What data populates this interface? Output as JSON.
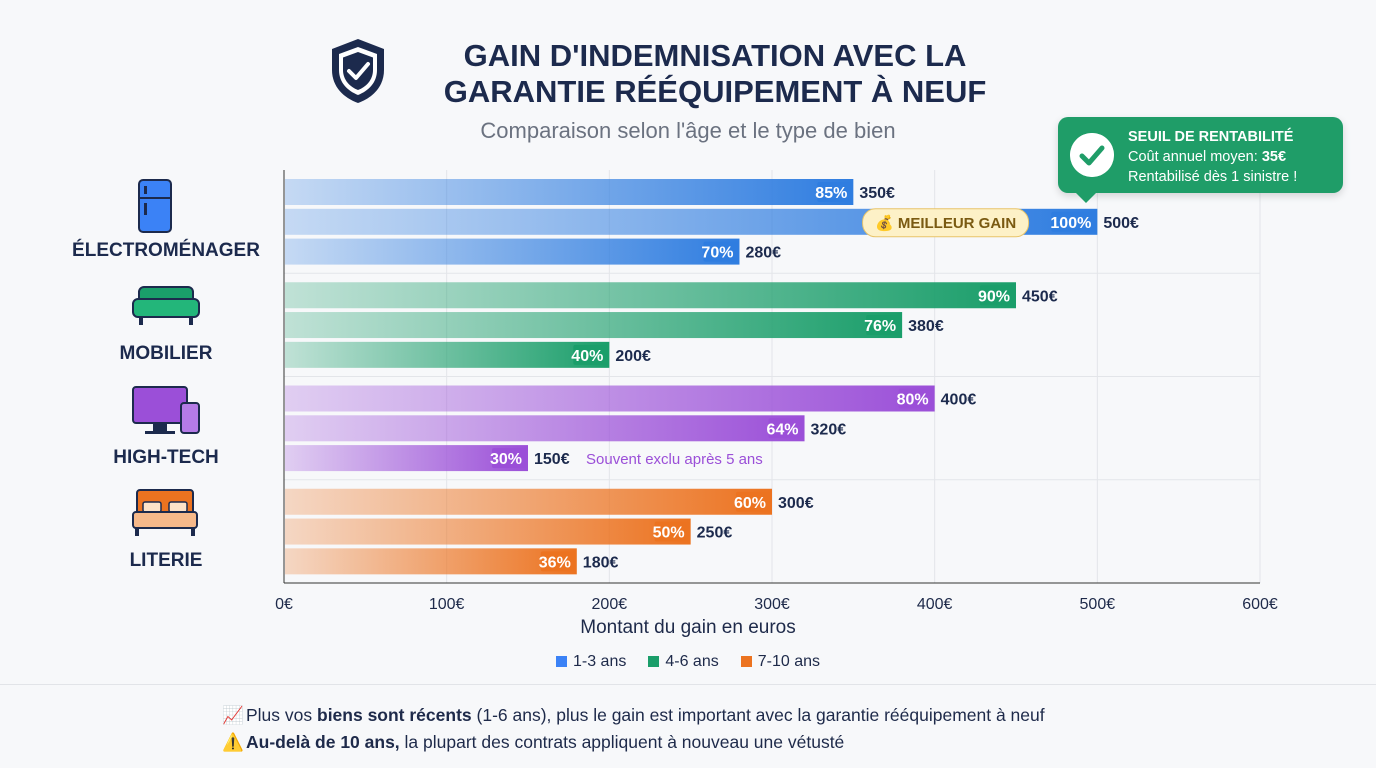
{
  "header": {
    "title_line1": "GAIN D'INDEMNISATION AVEC LA",
    "title_line2": "GARANTIE RÉÉQUIPEMENT À NEUF",
    "subtitle": "Comparaison selon l'âge et le type de bien",
    "icon": "shield-check-icon"
  },
  "callout": {
    "icon": "check-circle-icon",
    "title": "SEUIL DE RENTABILITÉ",
    "line2_prefix": "Coût annuel moyen: ",
    "line2_value": "35€",
    "line3": "Rentabilisé dès 1 sinistre !"
  },
  "chart_data": {
    "type": "bar",
    "orientation": "horizontal",
    "categories": [
      "ÉLECTROMÉNAGER",
      "MOBILIER",
      "HIGH-TECH",
      "LITERIE"
    ],
    "category_icons": [
      "fridge-icon",
      "sofa-icon",
      "computer-tablet-icon",
      "bed-icon"
    ],
    "series": [
      {
        "name": "1-3 ans",
        "values": [
          350,
          450,
          400,
          300
        ],
        "percent_labels": [
          "85%",
          "90%",
          "80%",
          "60%"
        ]
      },
      {
        "name": "4-6 ans",
        "values": [
          500,
          380,
          320,
          250
        ],
        "percent_labels": [
          "100%",
          "76%",
          "64%",
          "50%"
        ]
      },
      {
        "name": "7-10 ans",
        "values": [
          280,
          200,
          150,
          180
        ],
        "percent_labels": [
          "70%",
          "40%",
          "30%",
          "36%"
        ]
      }
    ],
    "value_labels": [
      [
        "350€",
        "500€",
        "280€"
      ],
      [
        "450€",
        "380€",
        "200€"
      ],
      [
        "400€",
        "320€",
        "150€"
      ],
      [
        "300€",
        "250€",
        "180€"
      ]
    ],
    "category_colors": [
      "#2f7de0",
      "#1a9e6a",
      "#9b4fd8",
      "#ec7320"
    ],
    "legend_colors": [
      "#3b82f6",
      "#1a9e6a",
      "#ec7320"
    ],
    "xlim": [
      0,
      600
    ],
    "xticks": [
      "0€",
      "100€",
      "200€",
      "300€",
      "400€",
      "500€",
      "600€"
    ],
    "xlabel": "Montant du gain en euros",
    "grid": true,
    "legend_position": "bottom",
    "annotations": {
      "best_gain": "💰 MEILLEUR GAIN",
      "hightech_note": "Souvent exclu après 5 ans"
    }
  },
  "footer": {
    "line1_icon": "📈",
    "line1_pre": "Plus vos ",
    "line1_bold": "biens sont récents",
    "line1_post": " (1-6 ans), plus le gain est important avec la garantie rééquipement à neuf",
    "line2_icon": "⚠️",
    "line2_bold": "Au-delà de 10 ans,",
    "line2_post": " la plupart des contrats appliquent à nouveau une vétusté"
  }
}
